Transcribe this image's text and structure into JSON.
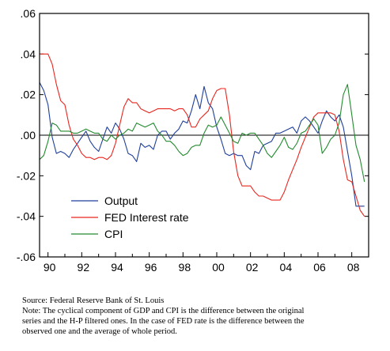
{
  "chart_data": {
    "type": "line",
    "title": "",
    "xlabel": "",
    "ylabel": "",
    "xlim": [
      1989.5,
      2009.0
    ],
    "ylim": [
      -0.06,
      0.06
    ],
    "y_ticks": [
      -0.06,
      -0.04,
      -0.02,
      0.0,
      0.02,
      0.04,
      0.06
    ],
    "y_tick_labels": [
      "-.06",
      "-.04",
      "-.02",
      ".00",
      ".02",
      ".04",
      ".06"
    ],
    "x_ticks": [
      1990,
      1992,
      1994,
      1996,
      1998,
      2000,
      2002,
      2004,
      2006,
      2008
    ],
    "x_tick_labels": [
      "90",
      "92",
      "94",
      "96",
      "98",
      "00",
      "02",
      "04",
      "06",
      "08"
    ],
    "zero_line": true,
    "grid": false,
    "legend_position": "bottom-left",
    "series": [
      {
        "name": "Output",
        "color": "#1f3f99",
        "x": [
          1989.5,
          1989.75,
          1990.0,
          1990.25,
          1990.5,
          1990.75,
          1991.0,
          1991.25,
          1991.5,
          1991.75,
          1992.0,
          1992.25,
          1992.5,
          1992.75,
          1993.0,
          1993.25,
          1993.5,
          1993.75,
          1994.0,
          1994.25,
          1994.5,
          1994.75,
          1995.0,
          1995.25,
          1995.5,
          1995.75,
          1996.0,
          1996.25,
          1996.5,
          1996.75,
          1997.0,
          1997.25,
          1997.5,
          1997.75,
          1998.0,
          1998.25,
          1998.5,
          1998.75,
          1999.0,
          1999.25,
          1999.5,
          1999.75,
          2000.0,
          2000.25,
          2000.5,
          2000.75,
          2001.0,
          2001.25,
          2001.5,
          2001.75,
          2002.0,
          2002.25,
          2002.5,
          2002.75,
          2003.0,
          2003.25,
          2003.5,
          2003.75,
          2004.0,
          2004.25,
          2004.5,
          2004.75,
          2005.0,
          2005.25,
          2005.5,
          2005.75,
          2006.0,
          2006.25,
          2006.5,
          2006.75,
          2007.0,
          2007.25,
          2007.5,
          2007.75,
          2008.0,
          2008.25,
          2008.5,
          2008.75
        ],
        "values": [
          0.026,
          0.022,
          0.015,
          -0.001,
          -0.009,
          -0.008,
          -0.009,
          -0.011,
          -0.007,
          -0.004,
          -0.001,
          0.002,
          -0.003,
          -0.006,
          -0.008,
          -0.002,
          0.004,
          0.001,
          0.006,
          0.003,
          -0.002,
          -0.009,
          -0.01,
          -0.013,
          -0.004,
          -0.006,
          -0.005,
          -0.007,
          0.0,
          0.002,
          0.002,
          -0.002,
          0.001,
          0.003,
          0.007,
          0.006,
          0.012,
          0.02,
          0.013,
          0.024,
          0.016,
          0.013,
          0.004,
          -0.002,
          -0.009,
          -0.01,
          -0.009,
          -0.01,
          -0.01,
          -0.015,
          -0.017,
          -0.008,
          -0.009,
          -0.005,
          -0.004,
          -0.003,
          0.001,
          0.001,
          0.002,
          0.003,
          0.004,
          0.001,
          0.007,
          0.009,
          0.007,
          0.004,
          0.001,
          0.007,
          0.012,
          0.009,
          0.007,
          0.01,
          0.004,
          -0.008,
          -0.02,
          -0.035,
          -0.035,
          -0.035
        ]
      },
      {
        "name": "FED Interest rate",
        "color": "#e8261f",
        "x": [
          1989.5,
          1989.75,
          1990.0,
          1990.25,
          1990.5,
          1990.75,
          1991.0,
          1991.25,
          1991.5,
          1991.75,
          1992.0,
          1992.25,
          1992.5,
          1992.75,
          1993.0,
          1993.25,
          1993.5,
          1993.75,
          1994.0,
          1994.25,
          1994.5,
          1994.75,
          1995.0,
          1995.25,
          1995.5,
          1995.75,
          1996.0,
          1996.25,
          1996.5,
          1996.75,
          1997.0,
          1997.25,
          1997.5,
          1997.75,
          1998.0,
          1998.25,
          1998.5,
          1998.75,
          1999.0,
          1999.25,
          1999.5,
          1999.75,
          2000.0,
          2000.25,
          2000.5,
          2000.75,
          2001.0,
          2001.25,
          2001.5,
          2001.75,
          2002.0,
          2002.25,
          2002.5,
          2002.75,
          2003.0,
          2003.25,
          2003.5,
          2003.75,
          2004.0,
          2004.25,
          2004.5,
          2004.75,
          2005.0,
          2005.25,
          2005.5,
          2005.75,
          2006.0,
          2006.25,
          2006.5,
          2006.75,
          2007.0,
          2007.25,
          2007.5,
          2007.75,
          2008.0,
          2008.25,
          2008.5,
          2008.75
        ],
        "values": [
          0.04,
          0.04,
          0.04,
          0.035,
          0.025,
          0.017,
          0.015,
          0.005,
          -0.002,
          -0.005,
          -0.009,
          -0.011,
          -0.011,
          -0.012,
          -0.011,
          -0.011,
          -0.012,
          -0.01,
          -0.004,
          0.005,
          0.014,
          0.018,
          0.016,
          0.016,
          0.013,
          0.012,
          0.011,
          0.012,
          0.013,
          0.013,
          0.013,
          0.013,
          0.012,
          0.013,
          0.013,
          0.01,
          0.004,
          0.004,
          0.008,
          0.01,
          0.012,
          0.018,
          0.022,
          0.023,
          0.023,
          0.01,
          -0.008,
          -0.02,
          -0.025,
          -0.025,
          -0.025,
          -0.028,
          -0.03,
          -0.03,
          -0.031,
          -0.032,
          -0.032,
          -0.032,
          -0.028,
          -0.022,
          -0.017,
          -0.012,
          -0.006,
          -0.001,
          0.004,
          0.009,
          0.011,
          0.011,
          0.011,
          0.011,
          0.01,
          0.002,
          -0.012,
          -0.022,
          -0.023,
          -0.03,
          -0.037,
          -0.04
        ]
      },
      {
        "name": "CPI",
        "color": "#238a2e",
        "x": [
          1989.5,
          1989.75,
          1990.0,
          1990.25,
          1990.5,
          1990.75,
          1991.0,
          1991.25,
          1991.5,
          1991.75,
          1992.0,
          1992.25,
          1992.5,
          1992.75,
          1993.0,
          1993.25,
          1993.5,
          1993.75,
          1994.0,
          1994.25,
          1994.5,
          1994.75,
          1995.0,
          1995.25,
          1995.5,
          1995.75,
          1996.0,
          1996.25,
          1996.5,
          1996.75,
          1997.0,
          1997.25,
          1997.5,
          1997.75,
          1998.0,
          1998.25,
          1998.5,
          1998.75,
          1999.0,
          1999.25,
          1999.5,
          1999.75,
          2000.0,
          2000.25,
          2000.5,
          2000.75,
          2001.0,
          2001.25,
          2001.5,
          2001.75,
          2002.0,
          2002.25,
          2002.5,
          2002.75,
          2003.0,
          2003.25,
          2003.5,
          2003.75,
          2004.0,
          2004.25,
          2004.5,
          2004.75,
          2005.0,
          2005.25,
          2005.5,
          2005.75,
          2006.0,
          2006.25,
          2006.5,
          2006.75,
          2007.0,
          2007.25,
          2007.5,
          2007.75,
          2008.0,
          2008.25,
          2008.5,
          2008.75
        ],
        "values": [
          -0.012,
          -0.01,
          -0.003,
          0.006,
          0.005,
          0.002,
          0.002,
          0.002,
          0.001,
          0.001,
          0.002,
          0.003,
          0.002,
          0.001,
          0.001,
          -0.002,
          -0.003,
          0.0,
          -0.002,
          0.0,
          0.001,
          0.003,
          0.002,
          0.006,
          0.005,
          0.004,
          0.005,
          0.006,
          0.002,
          0.0,
          -0.003,
          -0.003,
          -0.005,
          -0.008,
          -0.01,
          -0.009,
          -0.006,
          -0.005,
          -0.005,
          0.001,
          0.005,
          0.004,
          0.005,
          0.009,
          0.005,
          0.001,
          -0.003,
          -0.004,
          0.001,
          0.0,
          0.001,
          0.001,
          -0.002,
          -0.005,
          -0.009,
          -0.011,
          -0.008,
          -0.005,
          -0.001,
          -0.006,
          -0.007,
          -0.004,
          0.001,
          0.002,
          0.005,
          0.008,
          0.005,
          -0.009,
          -0.006,
          -0.002,
          0.0,
          0.006,
          0.02,
          0.025,
          0.01,
          -0.005,
          -0.012,
          -0.023
        ]
      }
    ]
  },
  "notes": {
    "source": "Source: Federal Reserve Bank of St. Louis",
    "note_line1": "Note: The cyclical component of GDP and CPI is the difference between the original",
    "note_line2": "series and the H-P filtered ones. In the case of FED rate is the difference between the",
    "note_line3": "observed one and the average of whole period."
  }
}
